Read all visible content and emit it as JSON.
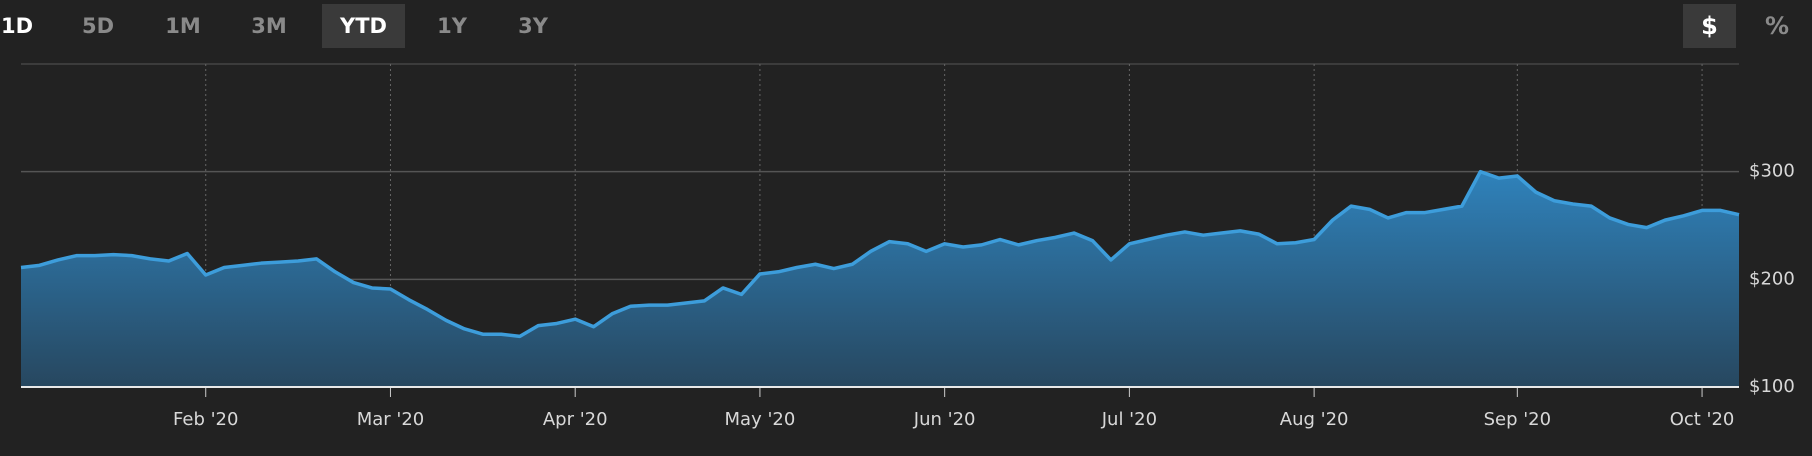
{
  "toolbar": {
    "ranges": [
      "1D",
      "5D",
      "1M",
      "3M",
      "YTD",
      "1Y",
      "3Y"
    ],
    "units": [
      "$",
      "%"
    ]
  },
  "chart_data": {
    "type": "area",
    "categories": [
      null,
      null,
      null,
      null,
      null,
      null,
      null,
      null,
      null,
      null,
      "Feb '20",
      null,
      null,
      null,
      null,
      null,
      null,
      null,
      null,
      null,
      "Mar '20",
      null,
      null,
      null,
      null,
      null,
      null,
      null,
      null,
      null,
      "Apr '20",
      null,
      null,
      null,
      null,
      null,
      null,
      null,
      null,
      null,
      "May '20",
      null,
      null,
      null,
      null,
      null,
      null,
      null,
      null,
      null,
      "Jun '20",
      null,
      null,
      null,
      null,
      null,
      null,
      null,
      null,
      null,
      "Jul '20",
      null,
      null,
      null,
      null,
      null,
      null,
      null,
      null,
      null,
      "Aug '20",
      null,
      null,
      null,
      null,
      null,
      null,
      null,
      null,
      null,
      null,
      "Sep '20",
      null,
      null,
      null,
      null,
      null,
      null,
      null,
      null,
      null,
      "Oct '20",
      null,
      null
    ],
    "values": [
      211,
      213,
      218,
      222,
      222,
      223,
      222,
      219,
      217,
      224,
      204,
      211,
      213,
      215,
      216,
      217,
      219,
      207,
      197,
      192,
      191,
      181,
      172,
      162,
      154,
      149,
      149,
      147,
      157,
      159,
      163,
      156,
      168,
      175,
      176,
      176,
      178,
      180,
      192,
      186,
      205,
      207,
      211,
      214,
      210,
      214,
      226,
      235,
      233,
      226,
      233,
      230,
      232,
      237,
      232,
      236,
      239,
      243,
      236,
      218,
      233,
      237,
      241,
      244,
      241,
      243,
      245,
      242,
      233,
      234,
      237,
      255,
      268,
      265,
      257,
      262,
      262,
      265,
      268,
      300,
      294,
      296,
      281,
      273,
      270,
      268,
      257,
      251,
      248,
      255,
      259,
      264,
      264,
      260
    ],
    "color": "#3d9ddb",
    "ylim": [
      100,
      400
    ],
    "yticks": [
      {
        "value": 100,
        "label": "$100"
      },
      {
        "value": 200,
        "label": "$200"
      },
      {
        "value": 300,
        "label": "$300"
      }
    ],
    "grid": true
  }
}
